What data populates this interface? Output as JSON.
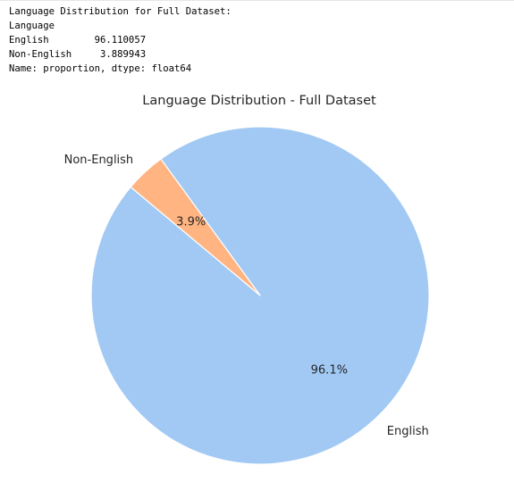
{
  "console": {
    "lines": [
      "Language Distribution for Full Dataset:",
      "Language",
      "English        96.110057",
      "Non-English     3.889943",
      "Name: proportion, dtype: float64"
    ]
  },
  "chart_data": {
    "type": "pie",
    "title": "Language Distribution - Full Dataset",
    "categories": [
      "English",
      "Non-English"
    ],
    "values": [
      96.110057,
      3.889943
    ],
    "percent_labels": [
      "96.1%",
      "3.9%"
    ],
    "colors": [
      "#a1c9f4",
      "#ffb482"
    ],
    "edge_color": "#ffffff",
    "start_angle_deg": 140,
    "legend": "none",
    "grid": false
  }
}
